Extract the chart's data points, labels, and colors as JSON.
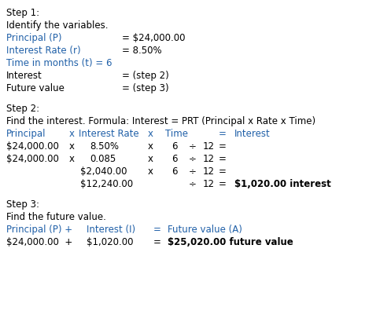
{
  "bg_color": "#ffffff",
  "text_color": "#000000",
  "blue_color": "#2060a8",
  "figw": 4.97,
  "figh": 4.05,
  "dpi": 100,
  "fs": 8.5,
  "lh": 16,
  "step1_header": "Step 1:",
  "step2_header": "Step 2:",
  "step3_header": "Step 3:"
}
